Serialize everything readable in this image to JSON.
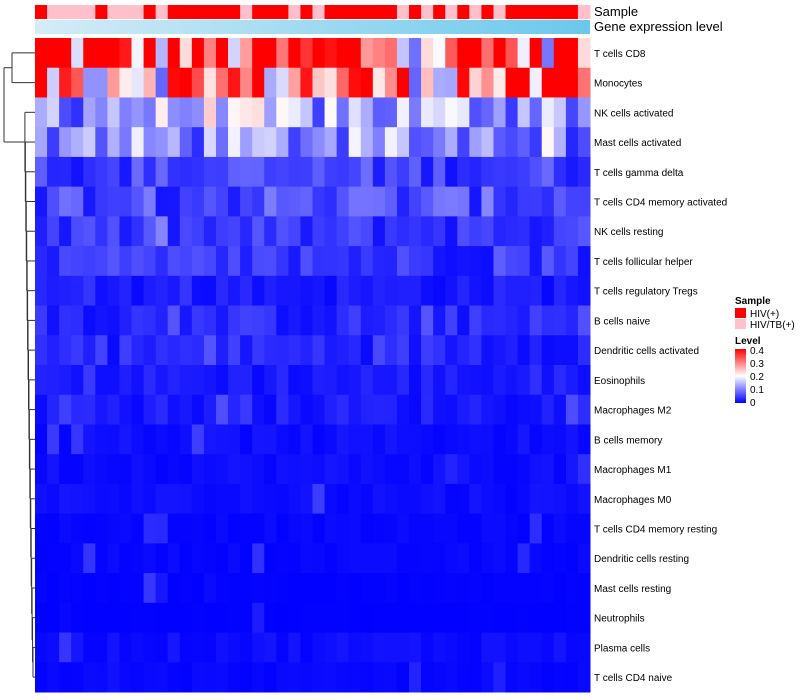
{
  "chart_data": {
    "type": "heatmap",
    "title": "",
    "annotation_rows": [
      {
        "key": "sample",
        "label": "Sample"
      },
      {
        "key": "gene",
        "label": "Gene expression level"
      }
    ],
    "samples": {
      "count": 46,
      "groups": [
        "T",
        "P",
        "P",
        "P",
        "P",
        "T",
        "P",
        "P",
        "P",
        "T",
        "P",
        "T",
        "T",
        "T",
        "T",
        "T",
        "T",
        "P",
        "T",
        "T",
        "T",
        "P",
        "T",
        "P",
        "T",
        "T",
        "T",
        "T",
        "T",
        "T",
        "P",
        "T",
        "P",
        "T",
        "P",
        "T",
        "P",
        "T",
        "P",
        "T",
        "T",
        "T",
        "T",
        "T",
        "T",
        "P"
      ]
    },
    "gene_expression_gradient": [
      "#d5ecf6",
      "#6ac8ec"
    ],
    "rows": [
      "T cells CD8",
      "Monocytes",
      "NK cells activated",
      "Mast cells activated",
      "T cells gamma delta",
      "T cells CD4 memory activated",
      "NK cells resting",
      "T cells follicular helper",
      "T cells regulatory  Tregs",
      "B cells naive",
      "Dendritic cells activated",
      "Eosinophils",
      "Macrophages M2",
      "B cells memory",
      "Macrophages M1",
      "Macrophages M0",
      "T cells CD4 memory resting",
      "Dendritic cells resting",
      "Mast cells resting",
      "Neutrophils",
      "Plasma cells",
      "T cells CD4 naive"
    ],
    "row_base": [
      0.34,
      0.3,
      0.13,
      0.11,
      0.05,
      0.06,
      0.04,
      0.04,
      0.02,
      0.03,
      0.03,
      0.02,
      0.02,
      0.01,
      0.01,
      0.01,
      0.005,
      0.005,
      0.002,
      0.001,
      0.01,
      0.005
    ],
    "value_range": [
      0,
      0.4
    ],
    "legend": {
      "sample_title": "Sample",
      "sample_entries": [
        {
          "label": "HIV(+)",
          "color": "#ff0000"
        },
        {
          "label": "HIV/TB(+)",
          "color": "#ffc0cb"
        }
      ],
      "level_title": "Level",
      "level_ticks": [
        "0.4",
        "0.3",
        "0.2",
        "0.1",
        "0"
      ],
      "gradient": [
        "#0000ff",
        "#ffffff",
        "#ff0000"
      ]
    },
    "dendrogram": "rows"
  }
}
